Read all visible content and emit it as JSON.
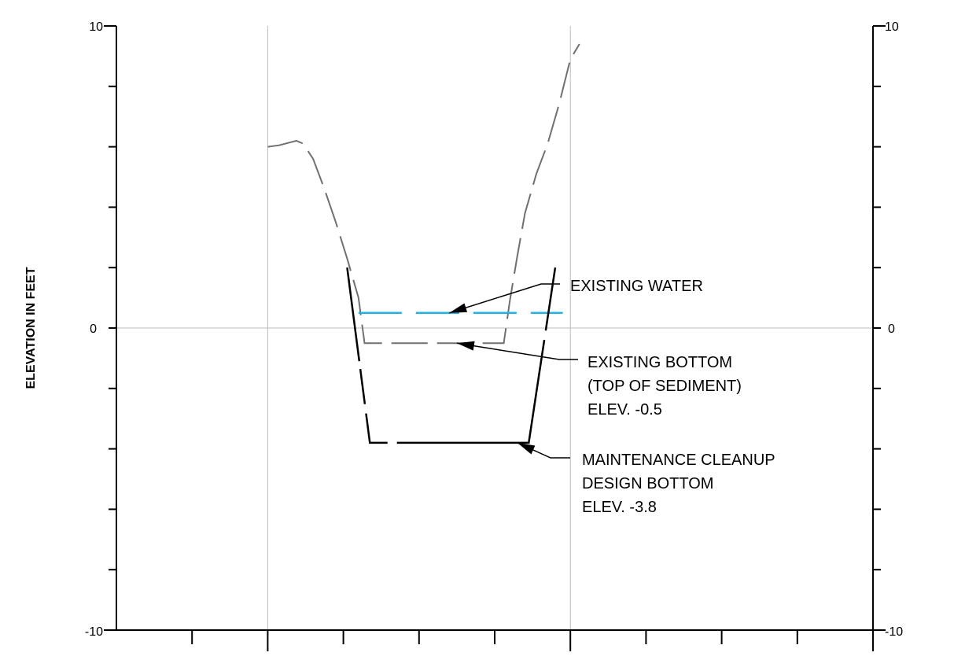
{
  "chart_data": {
    "type": "line",
    "title": "",
    "xlabel": "",
    "ylabel": "ELEVATION IN FEET",
    "ylim": [
      -10,
      10
    ],
    "xlim": [
      0,
      10
    ],
    "y_tick_labels": {
      "top": "10",
      "zero": "0",
      "bottom": "-10"
    },
    "x_tick_count": 10,
    "grid": true,
    "colors": {
      "water": "#1eb4e6",
      "existing_ground": "#707070",
      "design_section": "#000000",
      "grid": "#bbbbbb",
      "axis": "#000000"
    },
    "series": [
      {
        "key": "existing_ground",
        "style": "long-dash",
        "x": [
          2.0,
          2.15,
          2.38,
          2.47,
          2.6,
          2.75,
          2.9,
          3.05,
          3.2,
          3.28,
          5.12,
          5.2,
          5.3,
          5.4,
          5.55,
          5.7,
          5.85,
          6.0,
          6.12
        ],
        "y": [
          6.0,
          6.05,
          6.2,
          6.1,
          5.6,
          4.6,
          3.5,
          2.3,
          1.0,
          -0.5,
          -0.5,
          0.9,
          2.4,
          3.8,
          5.1,
          6.1,
          7.4,
          8.9,
          9.4
        ]
      },
      {
        "key": "existing_water",
        "style": "long-dash",
        "x": [
          3.2,
          5.9
        ],
        "y": [
          0.5,
          0.5
        ]
      },
      {
        "key": "design_bottom",
        "style": "long-dash-break",
        "x": [
          3.05,
          3.35,
          5.45,
          5.8
        ],
        "y": [
          2.0,
          -3.8,
          -3.8,
          2.0
        ]
      }
    ],
    "annotations": [
      {
        "key": "existing_water",
        "lines": [
          "EXISTING WATER"
        ],
        "arrow_to": [
          4.4,
          0.5
        ]
      },
      {
        "key": "existing_bottom",
        "lines": [
          "EXISTING BOTTOM",
          "(TOP OF SEDIMENT)",
          "ELEV. -0.5"
        ],
        "arrow_to": [
          4.5,
          -0.5
        ]
      },
      {
        "key": "design_bottom",
        "lines": [
          "MAINTENANCE CLEANUP",
          "DESIGN BOTTOM",
          "ELEV. -3.8"
        ],
        "arrow_to": [
          5.3,
          -3.8
        ]
      }
    ]
  }
}
